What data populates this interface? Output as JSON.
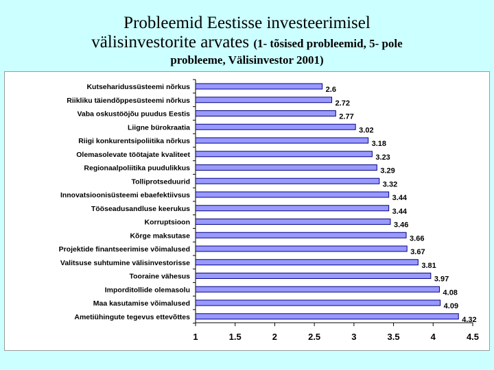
{
  "header": {
    "title_line1": "Probleemid Eestisse investeerimisel",
    "title_line2_main": "välisinvestorite arvates",
    "title_line2_small": "(1- tõsised probleemid, 5- pole",
    "title_line3": "probleeme, Välisinvestor 2001)"
  },
  "colors": {
    "bar_fill": "#9999ff",
    "bar_stroke": "#000080",
    "background": "#ccffff",
    "plot_background": "#ffffff"
  },
  "chart_data": {
    "type": "bar",
    "orientation": "horizontal",
    "title": "Probleemid Eestisse investeerimisel välisinvestorite arvates (1- tõsised probleemid, 5- pole probleeme, Välisinvestor 2001)",
    "xlabel": "",
    "ylabel": "",
    "xlim": [
      1,
      4.5
    ],
    "xticks": [
      "1",
      "1.5",
      "2",
      "2.5",
      "3",
      "3.5",
      "4",
      "4.5"
    ],
    "grid": false,
    "legend": "none",
    "categories": [
      "Kutseharidussüsteemi nõrkus",
      "Riikliku täiendõppesüsteemi nõrkus",
      "Vaba oskustööjõu puudus Eestis",
      "Liigne bürokraatia",
      "Riigi konkurentsipoliitika nõrkus",
      "Olemasolevate töötajate kvaliteet",
      "Regionaalpoliitika puudulikkus",
      "Tolliprotseduurid",
      "Innovatsioonisüsteemi ebaefektiivsus",
      "Tööseadusandluse keerukus",
      "Korruptsioon",
      "Kõrge maksutase",
      "Projektide finantseerimise võimalused",
      "Valitsuse suhtumine välisinvestorisse",
      "Tooraine vähesus",
      "Imporditollide olemasolu",
      "Maa kasutamise võimalused",
      "Ametiühingute tegevus ettevõttes"
    ],
    "values": [
      2.6,
      2.72,
      2.77,
      3.02,
      3.18,
      3.23,
      3.29,
      3.32,
      3.44,
      3.44,
      3.46,
      3.66,
      3.67,
      3.81,
      3.97,
      4.08,
      4.09,
      4.32
    ],
    "value_labels": [
      "2.6",
      "2.72",
      "2.77",
      "3.02",
      "3.18",
      "3.23",
      "3.29",
      "3.32",
      "3.44",
      "3.44",
      "3.46",
      "3.66",
      "3.67",
      "3.81",
      "3.97",
      "4.08",
      "4.09",
      "4.32"
    ]
  }
}
